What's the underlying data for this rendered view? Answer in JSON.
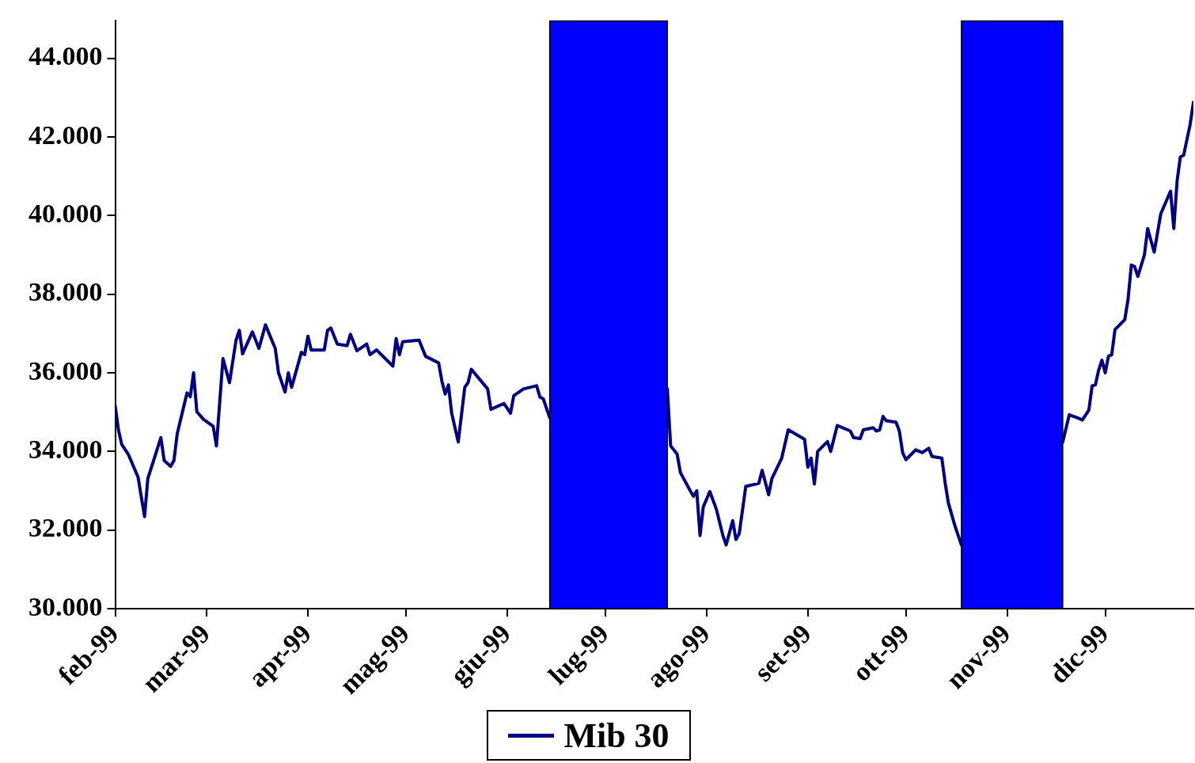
{
  "chart_data": {
    "type": "line",
    "legend": "bottom",
    "grid": false,
    "marker": "none",
    "line_style": "solid",
    "xlim": [
      "1999-02-01",
      "1999-12-28"
    ],
    "ylim": [
      30000,
      44950
    ],
    "xticks": [
      {
        "value": "1999-02-01",
        "label": "feb-99"
      },
      {
        "value": "1999-03-01",
        "label": "mar-99"
      },
      {
        "value": "1999-04-01",
        "label": "apr-99"
      },
      {
        "value": "1999-05-01",
        "label": "mag-99"
      },
      {
        "value": "1999-06-01",
        "label": "giu-99"
      },
      {
        "value": "1999-07-01",
        "label": "lug-99"
      },
      {
        "value": "1999-08-01",
        "label": "ago-99"
      },
      {
        "value": "1999-09-01",
        "label": "set-99"
      },
      {
        "value": "1999-10-01",
        "label": "ott-99"
      },
      {
        "value": "1999-11-01",
        "label": "nov-99"
      },
      {
        "value": "1999-12-01",
        "label": "dic-99"
      }
    ],
    "yticks": [
      {
        "value": 30000,
        "label": "30.000"
      },
      {
        "value": 32000,
        "label": "32.000"
      },
      {
        "value": 34000,
        "label": "34.000"
      },
      {
        "value": 36000,
        "label": "36.000"
      },
      {
        "value": 38000,
        "label": "38.000"
      },
      {
        "value": 40000,
        "label": "40.000"
      },
      {
        "value": 42000,
        "label": "42.000"
      },
      {
        "value": 44000,
        "label": "44.000"
      }
    ],
    "bands": [
      {
        "axis": "x",
        "from": "1999-06-14",
        "to": "1999-07-20",
        "color": "#0000ff"
      },
      {
        "axis": "x",
        "from": "1999-10-18",
        "to": "1999-11-18",
        "color": "#0000ff"
      }
    ],
    "series": [
      {
        "name": "Mib 30",
        "color": "#000080",
        "x": [
          "1999-02-01",
          "1999-02-02",
          "1999-02-03",
          "1999-02-05",
          "1999-02-08",
          "1999-02-10",
          "1999-02-11",
          "1999-02-13",
          "1999-02-15",
          "1999-02-16",
          "1999-02-18",
          "1999-02-19",
          "1999-02-20",
          "1999-02-23",
          "1999-02-24",
          "1999-02-25",
          "1999-02-26",
          "1999-02-28",
          "1999-03-03",
          "1999-03-04",
          "1999-03-06",
          "1999-03-08",
          "1999-03-10",
          "1999-03-11",
          "1999-03-12",
          "1999-03-15",
          "1999-03-17",
          "1999-03-19",
          "1999-03-22",
          "1999-03-23",
          "1999-03-25",
          "1999-03-26",
          "1999-03-27",
          "1999-03-30",
          "1999-03-31",
          "1999-04-01",
          "1999-04-02",
          "1999-04-06",
          "1999-04-07",
          "1999-04-08",
          "1999-04-10",
          "1999-04-13",
          "1999-04-14",
          "1999-04-16",
          "1999-04-19",
          "1999-04-20",
          "1999-04-22",
          "1999-04-27",
          "1999-04-28",
          "1999-04-29",
          "1999-04-30",
          "1999-05-05",
          "1999-05-07",
          "1999-05-11",
          "1999-05-12",
          "1999-05-13",
          "1999-05-14",
          "1999-05-15",
          "1999-05-17",
          "1999-05-19",
          "1999-05-20",
          "1999-05-21",
          "1999-05-25",
          "1999-05-26",
          "1999-05-27",
          "1999-05-31",
          "1999-06-02",
          "1999-06-03",
          "1999-06-06",
          "1999-06-10",
          "1999-06-11",
          "1999-06-12",
          "1999-06-14",
          "1999-07-01",
          "1999-07-20",
          "1999-07-21",
          "1999-07-23",
          "1999-07-24",
          "1999-07-27",
          "1999-07-28",
          "1999-07-29",
          "1999-07-30",
          "1999-07-31",
          "1999-08-02",
          "1999-08-04",
          "1999-08-06",
          "1999-08-07",
          "1999-08-09",
          "1999-08-10",
          "1999-08-11",
          "1999-08-13",
          "1999-08-17",
          "1999-08-18",
          "1999-08-20",
          "1999-08-21",
          "1999-08-24",
          "1999-08-26",
          "1999-08-31",
          "1999-09-01",
          "1999-09-02",
          "1999-09-03",
          "1999-09-04",
          "1999-09-07",
          "1999-09-08",
          "1999-09-10",
          "1999-09-14",
          "1999-09-15",
          "1999-09-17",
          "1999-09-18",
          "1999-09-21",
          "1999-09-22",
          "1999-09-23",
          "1999-09-24",
          "1999-09-25",
          "1999-09-28",
          "1999-09-29",
          "1999-09-30",
          "1999-10-01",
          "1999-10-04",
          "1999-10-06",
          "1999-10-08",
          "1999-10-09",
          "1999-10-12",
          "1999-10-13",
          "1999-10-14",
          "1999-10-16",
          "1999-10-18",
          "1999-11-01",
          "1999-11-18",
          "1999-11-20",
          "1999-11-23",
          "1999-11-24",
          "1999-11-26",
          "1999-11-27",
          "1999-11-28",
          "1999-11-29",
          "1999-11-30",
          "1999-12-01",
          "1999-12-02",
          "1999-12-03",
          "1999-12-04",
          "1999-12-07",
          "1999-12-08",
          "1999-12-09",
          "1999-12-10",
          "1999-12-11",
          "1999-12-13",
          "1999-12-14",
          "1999-12-16",
          "1999-12-18",
          "1999-12-21",
          "1999-12-22",
          "1999-12-23",
          "1999-12-24",
          "1999-12-25",
          "1999-12-27",
          "1999-12-28"
        ],
        "values": [
          35170,
          34550,
          34180,
          33930,
          33350,
          32340,
          33310,
          33830,
          34350,
          33770,
          33620,
          33770,
          34450,
          35490,
          35390,
          36000,
          35010,
          34820,
          34640,
          34140,
          36360,
          35750,
          36830,
          37080,
          36480,
          37040,
          36620,
          37220,
          36620,
          36000,
          35510,
          36000,
          35630,
          36520,
          36460,
          36930,
          36580,
          36580,
          37080,
          37140,
          36730,
          36690,
          36980,
          36560,
          36730,
          36460,
          36580,
          36170,
          36870,
          36460,
          36790,
          36830,
          36420,
          36250,
          35790,
          35460,
          35690,
          34970,
          34240,
          35630,
          35750,
          36090,
          35690,
          35590,
          35070,
          35220,
          34970,
          35420,
          35590,
          35670,
          35380,
          35340,
          34860,
          null,
          35590,
          34140,
          33930,
          33460,
          33000,
          32860,
          33000,
          31860,
          32590,
          32980,
          32530,
          31860,
          31620,
          32240,
          31760,
          31910,
          33110,
          33190,
          33520,
          32900,
          33310,
          33830,
          34550,
          34310,
          33600,
          33830,
          33170,
          34000,
          34250,
          34000,
          34660,
          34520,
          34350,
          34330,
          34550,
          34600,
          34520,
          34550,
          34890,
          34780,
          34740,
          34520,
          33970,
          33790,
          34040,
          33970,
          34080,
          33870,
          33830,
          33210,
          32690,
          32110,
          31620,
          null,
          34240,
          34930,
          34840,
          34800,
          35050,
          35670,
          35690,
          36070,
          36320,
          36000,
          36420,
          36460,
          37100,
          37350,
          37870,
          38740,
          38700,
          38450,
          39000,
          39670,
          39070,
          40040,
          40620,
          39670,
          40870,
          41490,
          41530,
          42320,
          42880
        ]
      }
    ]
  }
}
